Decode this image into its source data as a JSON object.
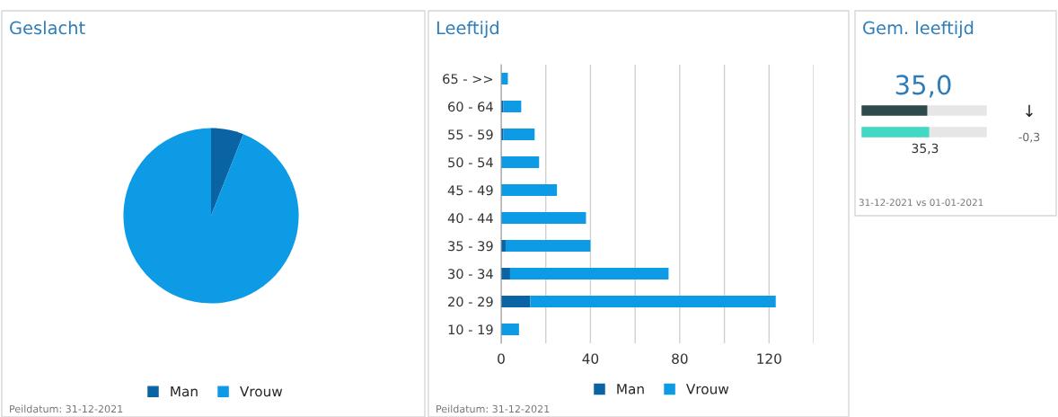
{
  "chart_data": [
    {
      "type": "pie",
      "title": "Geslacht",
      "categories": [
        "Man",
        "Vrouw"
      ],
      "values": [
        6,
        94
      ],
      "colors": [
        "#0a64a4",
        "#0e9be6"
      ],
      "legend": "bottom",
      "annotations": [
        "Peildatum: 31-12-2021"
      ]
    },
    {
      "type": "bar",
      "title": "Leeftijd",
      "orientation": "horizontal",
      "stacked": true,
      "categories": [
        "65 - >>",
        "60 - 64",
        "55 - 59",
        "50 - 54",
        "45 - 49",
        "40 - 44",
        "35 - 39",
        "30 - 34",
        "20 - 29",
        "10 - 19"
      ],
      "series": [
        {
          "name": "Man",
          "color": "#0a64a4",
          "values": [
            0,
            1,
            1,
            0,
            0,
            0,
            2,
            4,
            13,
            0
          ]
        },
        {
          "name": "Vrouw",
          "color": "#0e9be6",
          "values": [
            3,
            8,
            14,
            17,
            25,
            38,
            38,
            71,
            110,
            8
          ]
        }
      ],
      "xlim": [
        0,
        140
      ],
      "xticks": [
        0,
        {
          "value": 20,
          "label": null
        },
        40,
        {
          "value": 60,
          "label": null
        },
        80,
        {
          "value": 100,
          "label": null
        },
        120,
        {
          "value": 140,
          "label": null
        }
      ],
      "grid": "x",
      "legend": "bottom",
      "annotations": [
        "Peildatum: 31-12-2021"
      ]
    },
    {
      "type": "other",
      "title": "Gem. leeftijd",
      "annotations": [
        "35,0",
        "↓",
        "-0,3",
        "35,3",
        "31-12-2021 vs 01-01-2021"
      ]
    }
  ]
}
